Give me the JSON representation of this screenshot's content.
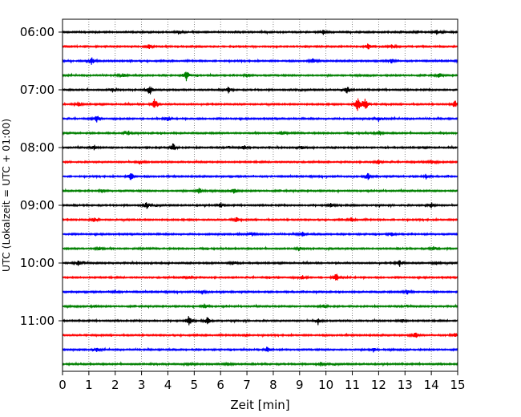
{
  "chart_data": {
    "type": "line",
    "title": "",
    "xlabel": "Zeit  [min]",
    "ylabel": "UTC (Lokalzeit = UTC + 01:00)",
    "xlim": [
      0,
      15
    ],
    "x_ticks": [
      "0",
      "1",
      "2",
      "3",
      "4",
      "5",
      "6",
      "7",
      "8",
      "9",
      "10",
      "11",
      "12",
      "13",
      "14",
      "15"
    ],
    "y_ticks": [
      "06:00",
      "07:00",
      "08:00",
      "09:00",
      "10:00",
      "11:00"
    ],
    "trace_interval_min": 15,
    "grid": "vertical dotted lines at each minute",
    "trace_color_cycle": [
      "#000000",
      "#ff0000",
      "#0000ff",
      "#008000"
    ],
    "series": [
      {
        "start": "06:00",
        "color": "#000000",
        "events": [
          [
            4.4,
            0.8
          ],
          [
            9.9,
            0.9
          ],
          [
            14.2,
            0.9
          ]
        ]
      },
      {
        "start": "06:15",
        "color": "#ff0000",
        "events": [
          [
            3.3,
            0.9
          ],
          [
            11.6,
            1.2
          ],
          [
            12.5,
            0.8
          ]
        ]
      },
      {
        "start": "06:30",
        "color": "#0000ff",
        "events": [
          [
            1.1,
            1.6
          ],
          [
            9.5,
            0.9
          ],
          [
            12.5,
            1.0
          ]
        ]
      },
      {
        "start": "06:45",
        "color": "#008000",
        "events": [
          [
            4.7,
            2.0
          ],
          [
            2.3,
            0.8
          ],
          [
            14.3,
            0.8
          ],
          [
            7.0,
            0.6
          ]
        ]
      },
      {
        "start": "07:00",
        "color": "#000000",
        "events": [
          [
            3.3,
            2.0
          ],
          [
            6.3,
            1.2
          ],
          [
            10.8,
            1.5
          ],
          [
            1.9,
            0.9
          ]
        ]
      },
      {
        "start": "07:15",
        "color": "#ff0000",
        "events": [
          [
            3.5,
            2.4
          ],
          [
            11.2,
            3.0
          ],
          [
            11.5,
            2.6
          ],
          [
            14.9,
            1.5
          ],
          [
            0.6,
            0.9
          ]
        ]
      },
      {
        "start": "07:30",
        "color": "#0000ff",
        "events": [
          [
            1.3,
            1.3
          ],
          [
            4.0,
            0.9
          ],
          [
            12.0,
            1.0
          ]
        ]
      },
      {
        "start": "07:45",
        "color": "#008000",
        "events": [
          [
            2.5,
            0.9
          ],
          [
            8.3,
            0.8
          ],
          [
            12.0,
            0.9
          ]
        ]
      },
      {
        "start": "08:00",
        "color": "#000000",
        "events": [
          [
            4.2,
            1.6
          ],
          [
            1.2,
            0.9
          ],
          [
            6.9,
            0.9
          ],
          [
            9.1,
            0.8
          ]
        ]
      },
      {
        "start": "08:15",
        "color": "#ff0000",
        "events": [
          [
            14.0,
            1.1
          ],
          [
            12.0,
            0.8
          ],
          [
            3.0,
            0.7
          ]
        ]
      },
      {
        "start": "08:30",
        "color": "#0000ff",
        "events": [
          [
            2.6,
            1.6
          ],
          [
            11.6,
            1.3
          ],
          [
            13.8,
            1.0
          ]
        ]
      },
      {
        "start": "08:45",
        "color": "#008000",
        "events": [
          [
            5.2,
            1.3
          ],
          [
            6.5,
            1.6
          ],
          [
            1.5,
            0.6
          ]
        ]
      },
      {
        "start": "09:00",
        "color": "#000000",
        "events": [
          [
            3.2,
            1.3
          ],
          [
            6.0,
            1.1
          ],
          [
            10.2,
            0.9
          ],
          [
            14.0,
            1.1
          ]
        ]
      },
      {
        "start": "09:15",
        "color": "#ff0000",
        "events": [
          [
            1.2,
            0.9
          ],
          [
            6.6,
            1.0
          ],
          [
            11.0,
            0.8
          ]
        ]
      },
      {
        "start": "09:30",
        "color": "#0000ff",
        "events": [
          [
            9.1,
            1.0
          ],
          [
            7.2,
            0.8
          ],
          [
            12.5,
            0.8
          ]
        ]
      },
      {
        "start": "09:45",
        "color": "#008000",
        "events": [
          [
            1.4,
            0.9
          ],
          [
            14.1,
            0.8
          ],
          [
            9.0,
            0.6
          ]
        ]
      },
      {
        "start": "10:00",
        "color": "#000000",
        "events": [
          [
            12.8,
            1.3
          ],
          [
            6.5,
            0.9
          ],
          [
            0.6,
            0.9
          ],
          [
            14.2,
            0.8
          ]
        ]
      },
      {
        "start": "10:15",
        "color": "#ff0000",
        "events": [
          [
            10.4,
            1.6
          ],
          [
            9.1,
            0.9
          ],
          [
            4.8,
            0.7
          ]
        ]
      },
      {
        "start": "10:30",
        "color": "#0000ff",
        "events": [
          [
            13.1,
            1.3
          ],
          [
            5.3,
            0.8
          ],
          [
            2.0,
            0.6
          ]
        ]
      },
      {
        "start": "10:45",
        "color": "#008000",
        "events": [
          [
            5.4,
            1.0
          ],
          [
            9.9,
            0.7
          ],
          [
            1.2,
            0.6
          ]
        ]
      },
      {
        "start": "11:00",
        "color": "#000000",
        "events": [
          [
            4.8,
            2.0
          ],
          [
            5.5,
            1.3
          ],
          [
            9.7,
            1.1
          ],
          [
            12.9,
            0.8
          ]
        ]
      },
      {
        "start": "11:15",
        "color": "#ff0000",
        "events": [
          [
            13.4,
            1.1
          ],
          [
            14.9,
            1.0
          ],
          [
            7.0,
            0.6
          ]
        ]
      },
      {
        "start": "11:30",
        "color": "#0000ff",
        "events": [
          [
            7.8,
            1.0
          ],
          [
            11.8,
            0.9
          ],
          [
            1.3,
            0.7
          ]
        ]
      },
      {
        "start": "11:45",
        "color": "#008000",
        "events": [
          [
            9.8,
            1.0
          ],
          [
            6.3,
            0.8
          ],
          [
            4.9,
            0.6
          ]
        ]
      }
    ]
  }
}
